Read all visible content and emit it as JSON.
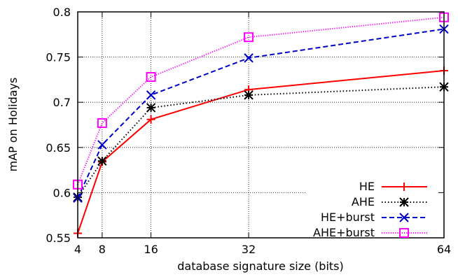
{
  "chart_data": {
    "type": "line",
    "xlabel": "database signature size (bits)",
    "ylabel": "mAP on Holidays",
    "xlim": [
      4,
      64
    ],
    "ylim": [
      0.55,
      0.8
    ],
    "xticks": [
      4,
      8,
      16,
      32,
      64
    ],
    "xtick_labels": [
      "4",
      "8",
      "16",
      "32",
      "64"
    ],
    "yticks": [
      0.55,
      0.6,
      0.65,
      0.7,
      0.75,
      0.8
    ],
    "ytick_labels": [
      "0.55",
      "0.6",
      "0.65",
      "0.7",
      "0.75",
      "0.8"
    ],
    "grid": true,
    "legend_position": "bottom-right",
    "series": [
      {
        "name": "HE",
        "color": "#ff0000",
        "dash": "solid",
        "marker": "plus",
        "x": [
          4,
          8,
          16,
          32,
          64
        ],
        "y": [
          0.555,
          0.634,
          0.681,
          0.714,
          0.735
        ]
      },
      {
        "name": "AHE",
        "color": "#000000",
        "dash": "dotted",
        "marker": "star",
        "x": [
          4,
          8,
          16,
          32,
          64
        ],
        "y": [
          0.595,
          0.635,
          0.694,
          0.708,
          0.717
        ]
      },
      {
        "name": "HE+burst",
        "color": "#0000cc",
        "dash": "dashed",
        "marker": "cross",
        "x": [
          4,
          8,
          16,
          32,
          64
        ],
        "y": [
          0.594,
          0.653,
          0.708,
          0.749,
          0.781
        ]
      },
      {
        "name": "AHE+burst",
        "color": "#ff00ff",
        "dash": "dotted-fine",
        "marker": "square",
        "x": [
          4,
          8,
          16,
          32,
          64
        ],
        "y": [
          0.609,
          0.677,
          0.728,
          0.772,
          0.794
        ]
      }
    ]
  }
}
